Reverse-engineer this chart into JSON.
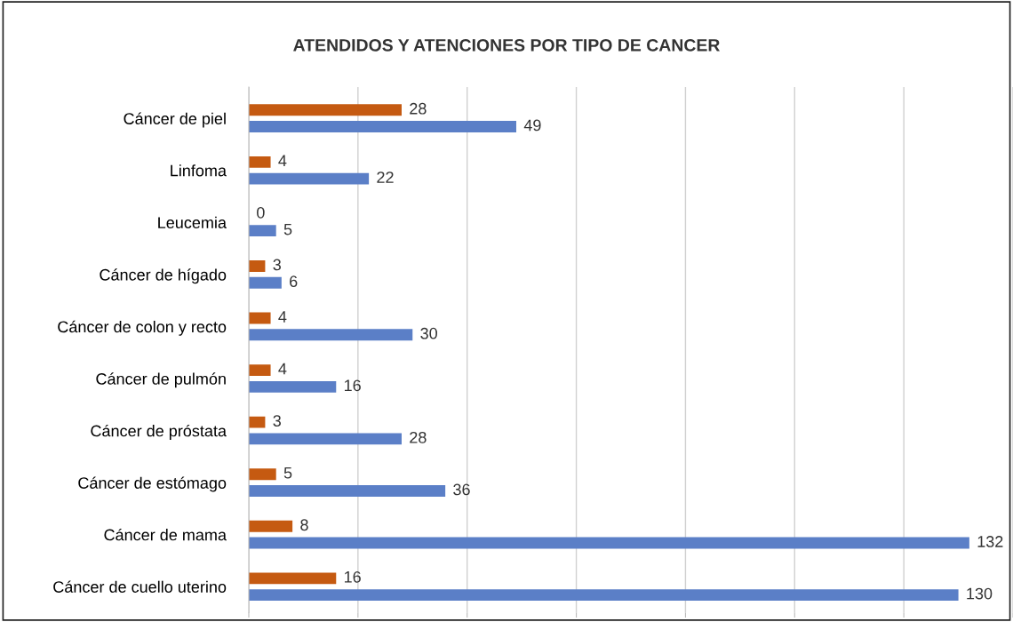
{
  "chart_data": {
    "type": "bar",
    "orientation": "horizontal",
    "title": "ATENDIDOS Y ATENCIONES POR TIPO DE CANCER",
    "categories": [
      "Cáncer de piel",
      "Linfoma",
      "Leucemia",
      "Cáncer de hígado",
      "Cáncer de colon y recto",
      "Cáncer de pulmón",
      "Cáncer de próstata",
      "Cáncer de estómago",
      "Cáncer de mama",
      "Cáncer de cuello uterino"
    ],
    "series": [
      {
        "color": "#c55a11",
        "values": [
          28,
          4,
          0,
          3,
          4,
          4,
          3,
          5,
          8,
          16
        ]
      },
      {
        "color": "#5b7fc7",
        "values": [
          49,
          22,
          5,
          6,
          30,
          16,
          28,
          36,
          132,
          130
        ]
      }
    ],
    "xlim": [
      0,
      140
    ],
    "xticks": [
      {
        "value": 0,
        "label": null
      },
      {
        "value": 20,
        "label": null
      },
      {
        "value": 40,
        "label": null
      },
      {
        "value": 60,
        "label": null
      },
      {
        "value": 80,
        "label": null
      },
      {
        "value": 100,
        "label": null
      },
      {
        "value": 120,
        "label": null
      },
      {
        "value": 140,
        "label": null
      }
    ],
    "grid": "x",
    "data_labels": true
  }
}
